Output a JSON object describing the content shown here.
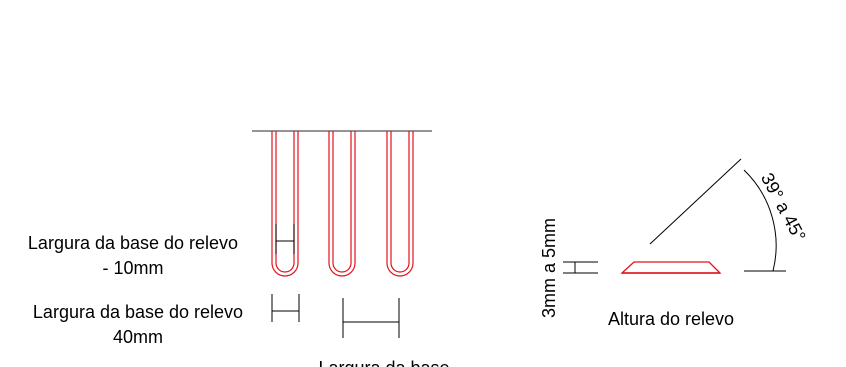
{
  "colors": {
    "outline": "#e3101a",
    "ink": "#000000",
    "baseline": "#555555",
    "background": "#ffffff"
  },
  "labels": {
    "relief_base_width_line1": "Largura da base do relevo",
    "relief_base_width_line2": "- 10mm",
    "relief_base_width_40_line1": "Largura da base do relevo",
    "relief_base_width_40_line2": "40mm",
    "base_width_cut": "Largura da base",
    "height_range": "3mm a 5mm",
    "relief_height": "Altura do relevo",
    "angle_range": "39° a 45°"
  }
}
